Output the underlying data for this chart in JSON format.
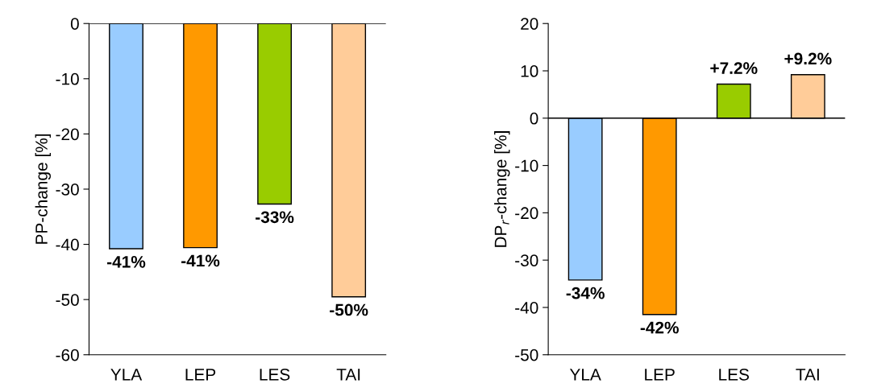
{
  "chart_data": [
    {
      "type": "bar",
      "ylabel": "PP-change [%]",
      "categories": [
        "YLA",
        "LEP",
        "LES",
        "TAI"
      ],
      "values": [
        -40.8,
        -40.6,
        -32.7,
        -49.5
      ],
      "colors": [
        "#99ccff",
        "#ff9900",
        "#99cc00",
        "#ffcc99"
      ],
      "value_labels": [
        "-41%",
        "-41%",
        "-33%",
        "-50%"
      ],
      "ylim": [
        -60,
        0
      ],
      "yticks": [
        -60,
        -50,
        -40,
        -30,
        -20,
        -10,
        0
      ],
      "ref_lines": [
        {
          "axis": "y",
          "value": 0,
          "color": "#000000"
        }
      ],
      "grid": false,
      "legend": false
    },
    {
      "type": "bar",
      "ylabel": "DP$_{r}$-change [%]",
      "categories": [
        "YLA",
        "LEP",
        "LES",
        "TAI"
      ],
      "values": [
        -34.2,
        -41.5,
        7.2,
        9.2
      ],
      "colors": [
        "#99ccff",
        "#ff9900",
        "#99cc00",
        "#ffcc99"
      ],
      "value_labels": [
        "-34%",
        "-42%",
        "+7.2%",
        "+9.2%"
      ],
      "ylim": [
        -50,
        20
      ],
      "yticks": [
        -50,
        -40,
        -30,
        -20,
        -10,
        0,
        10,
        20
      ],
      "ref_lines": [
        {
          "axis": "y",
          "value": 0,
          "color": "#000000"
        }
      ],
      "grid": false,
      "legend": false
    }
  ]
}
